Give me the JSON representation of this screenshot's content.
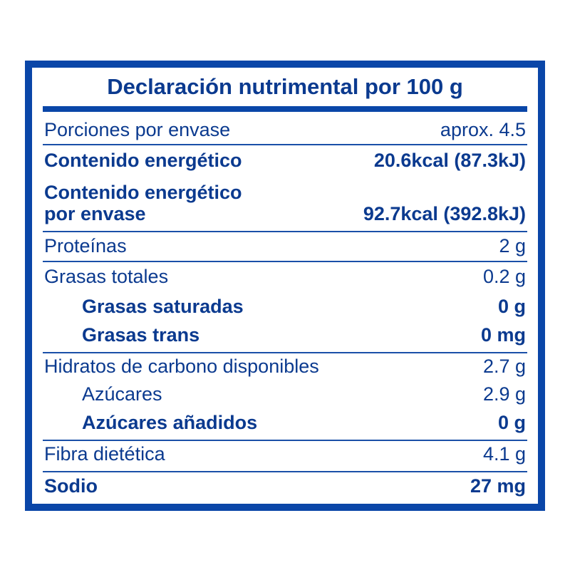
{
  "title": "Declaración nutrimental por 100 g",
  "colors": {
    "border": "#0a46a8",
    "text": "#0b3a8f"
  },
  "rows": [
    {
      "label": "Porciones por envase",
      "value": "aprox. 4.5"
    },
    {
      "label": "Contenido energético",
      "value": "20.6kcal (87.3kJ)"
    },
    {
      "label": "Contenido energético",
      "label2": "por envase",
      "value": "92.7kcal (392.8kJ)"
    },
    {
      "label": "Proteínas",
      "value": "2 g"
    },
    {
      "label": "Grasas totales",
      "value": "0.2 g"
    },
    {
      "label": "Grasas saturadas",
      "value": "0 g"
    },
    {
      "label": "Grasas trans",
      "value": "0 mg"
    },
    {
      "label": "Hidratos de carbono disponibles",
      "value": "2.7 g"
    },
    {
      "label": "Azúcares",
      "value": "2.9 g"
    },
    {
      "label": "Azúcares añadidos",
      "value": "0 g"
    },
    {
      "label": "Fibra dietética",
      "value": "4.1 g"
    },
    {
      "label": "Sodio",
      "value": "27 mg"
    }
  ]
}
